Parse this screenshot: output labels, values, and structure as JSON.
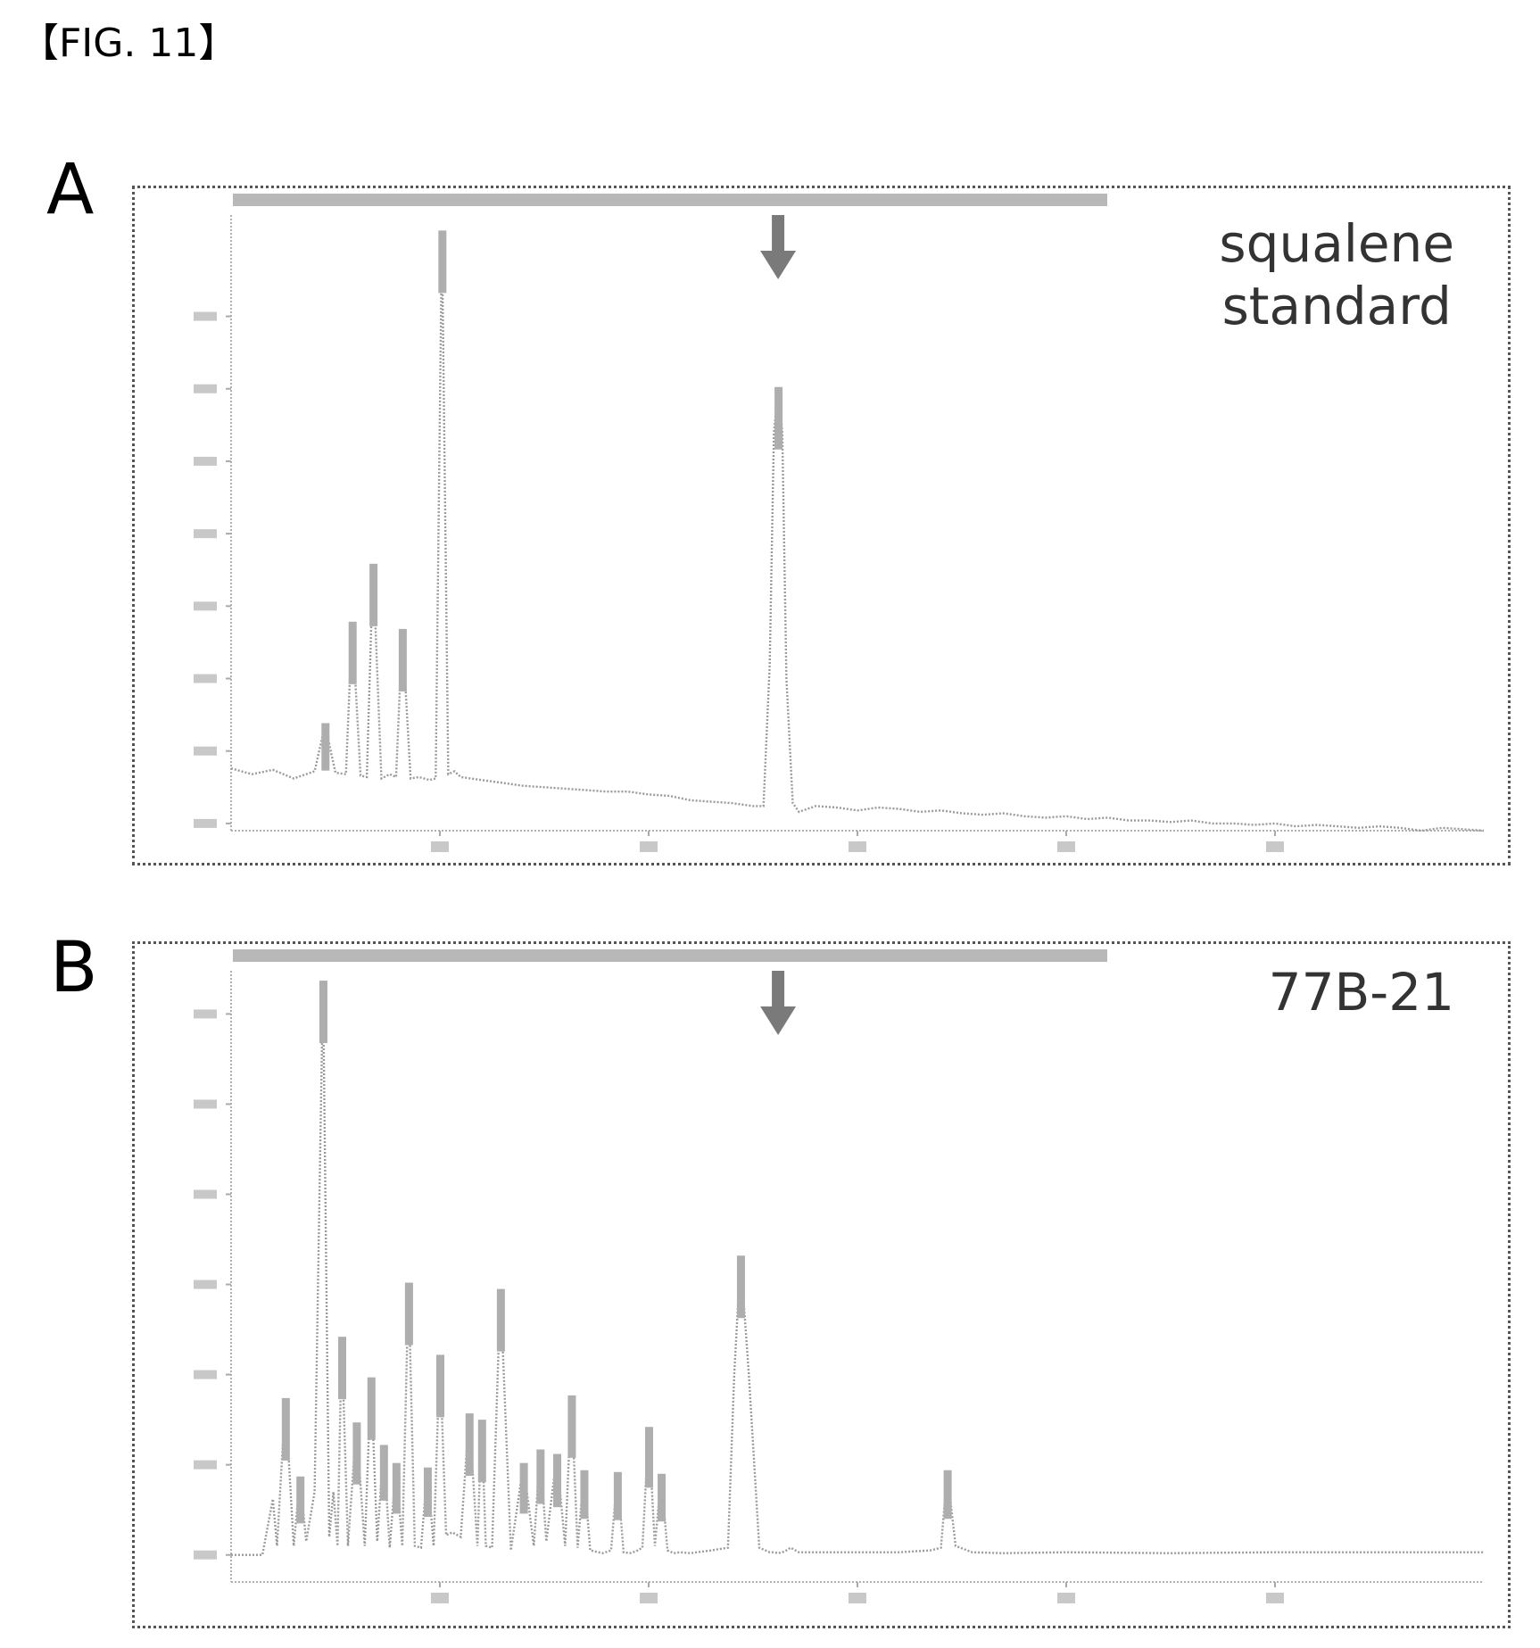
{
  "figure": {
    "label": "【FIG. 11】"
  },
  "chart_data": [
    {
      "type": "line",
      "panel": "A",
      "label": "squalene\nstandard",
      "arrow_at_x": 26.2,
      "xlim": [
        0,
        60
      ],
      "ylim": [
        -5.5,
        36.5
      ],
      "x_ticks": [
        10,
        20,
        30,
        40,
        50
      ],
      "y_ticks": [
        -5,
        0,
        5,
        10,
        15,
        20,
        25,
        30
      ],
      "series": [
        {
          "x": [
            0,
            1,
            2,
            3,
            4,
            4.5,
            5,
            5.5,
            5.8,
            6.2,
            6.5,
            6.8,
            7.2,
            7.6,
            7.9,
            8.2,
            8.6,
            9,
            9.5,
            9.8,
            10.1,
            10.4,
            10.7,
            11,
            12,
            13,
            14,
            15,
            16,
            17,
            18,
            19,
            20,
            21,
            22,
            23,
            24,
            25,
            25.5,
            25.8,
            26.0,
            26.2,
            26.4,
            26.6,
            26.9,
            27.2,
            28,
            29,
            30,
            31,
            32,
            33,
            34,
            35,
            36,
            37,
            38,
            39,
            40,
            41,
            42,
            43,
            44,
            45,
            46,
            47,
            48,
            49,
            50,
            51,
            52,
            53,
            54,
            55,
            56,
            57,
            58,
            59,
            60
          ],
          "y": [
            -1.2,
            -1.6,
            -1.3,
            -1.9,
            -1.4,
            1.8,
            -1.5,
            -1.6,
            8.8,
            -1.7,
            -1.8,
            12.8,
            -1.9,
            -1.6,
            -1.8,
            8.3,
            -1.9,
            -1.8,
            -2.0,
            -1.9,
            35.8,
            -1.6,
            -1.4,
            -1.8,
            -2.0,
            -2.2,
            -2.4,
            -2.5,
            -2.6,
            -2.7,
            -2.8,
            -2.8,
            -3.0,
            -3.1,
            -3.4,
            -3.5,
            -3.6,
            -3.8,
            -3.8,
            6.0,
            22.0,
            25.0,
            22.0,
            5.0,
            -3.6,
            -4.2,
            -3.8,
            -3.9,
            -4.1,
            -3.9,
            -4.0,
            -4.2,
            -4.1,
            -4.3,
            -4.4,
            -4.3,
            -4.5,
            -4.6,
            -4.5,
            -4.7,
            -4.6,
            -4.8,
            -4.8,
            -4.9,
            -4.8,
            -5.0,
            -5.0,
            -5.1,
            -5.0,
            -5.2,
            -5.1,
            -5.2,
            -5.3,
            -5.2,
            -5.3,
            -5.5,
            -5.3,
            -5.4,
            -5.5
          ]
        }
      ]
    },
    {
      "type": "line",
      "panel": "B",
      "label": "77B-21",
      "arrow_at_x": 26.2,
      "xlim": [
        0,
        60
      ],
      "ylim": [
        -30,
        640
      ],
      "x_ticks": [
        10,
        20,
        30,
        40,
        50
      ],
      "y_ticks": [
        0,
        100,
        200,
        300,
        400,
        500,
        600
      ],
      "series": [
        {
          "x": [
            0,
            1.5,
            2.0,
            2.2,
            2.6,
            3.0,
            3.3,
            3.6,
            4.0,
            4.4,
            4.7,
            4.9,
            5.1,
            5.3,
            5.6,
            6.0,
            6.4,
            6.7,
            7.0,
            7.3,
            7.6,
            7.9,
            8.2,
            8.5,
            8.8,
            9.1,
            9.4,
            9.7,
            10.0,
            10.3,
            10.6,
            11.0,
            11.4,
            11.8,
            12.0,
            12.2,
            12.5,
            12.9,
            13.4,
            14.0,
            14.5,
            14.8,
            15.1,
            15.6,
            16.0,
            16.3,
            16.6,
            16.9,
            17.2,
            17.8,
            18.2,
            18.5,
            18.8,
            19.1,
            19.4,
            19.7,
            20.0,
            20.3,
            20.6,
            20.9,
            21.2,
            21.5,
            22.0,
            23.0,
            23.8,
            24.1,
            24.4,
            24.8,
            25.3,
            25.8,
            26.0,
            26.2,
            26.4,
            26.6,
            26.8,
            27.2,
            28,
            30,
            32,
            33.5,
            34.0,
            34.3,
            34.7,
            35.5,
            37,
            40,
            45,
            50,
            55,
            60
          ],
          "y": [
            0,
            0,
            62,
            10,
            172,
            10,
            85,
            15,
            70,
            635,
            20,
            70,
            10,
            240,
            10,
            145,
            10,
            195,
            15,
            120,
            8,
            100,
            10,
            300,
            10,
            8,
            95,
            10,
            220,
            22,
            25,
            20,
            155,
            10,
            148,
            10,
            8,
            293,
            5,
            100,
            10,
            115,
            15,
            110,
            10,
            175,
            8,
            92,
            5,
            2,
            5,
            90,
            3,
            2,
            4,
            8,
            140,
            10,
            88,
            5,
            2,
            3,
            2,
            5,
            8,
            200,
            330,
            200,
            8,
            3,
            3,
            2,
            3,
            5,
            8,
            3,
            3,
            3,
            3,
            5,
            8,
            92,
            10,
            3,
            2,
            3,
            2,
            3,
            3,
            3
          ]
        }
      ]
    }
  ]
}
